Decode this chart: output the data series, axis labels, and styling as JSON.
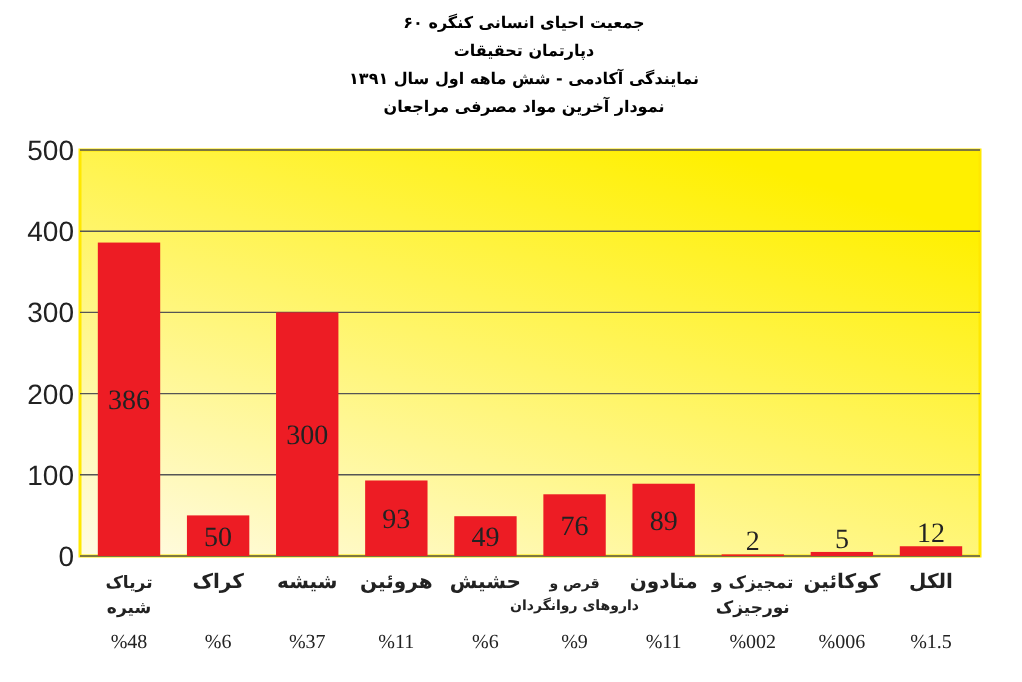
{
  "chart_data": {
    "type": "bar",
    "title": "جمعیت احیای انسانی کنگره ۶۰",
    "subtitle": "دپارتمان تحقیقات\nنمایندگی آکادمی - شش ماهه اول سال ۱۳۹۱\nنمودار آخرین مواد مصرفی مراجعان",
    "categories": [
      "تریاک\nشیره",
      "کراک",
      "شیشه",
      "هروئین",
      "حشیش",
      "قرص و\nداروهای روانگردان",
      "متادون",
      "تمجیزک و\nنورجیزک",
      "کوکائین",
      "الکل"
    ],
    "values": [
      386,
      50,
      300,
      93,
      49,
      76,
      89,
      2,
      5,
      12
    ],
    "color": "#ed1c24",
    "ylim": [
      0,
      500
    ],
    "yticks": [
      0,
      100,
      200,
      300,
      400,
      500
    ],
    "grid": "y",
    "data_labels": true,
    "annotations": [
      "%48",
      "%6",
      "%37",
      "%11",
      "%6",
      "%9",
      "%11",
      "%002",
      "%006",
      "%1.5"
    ]
  }
}
